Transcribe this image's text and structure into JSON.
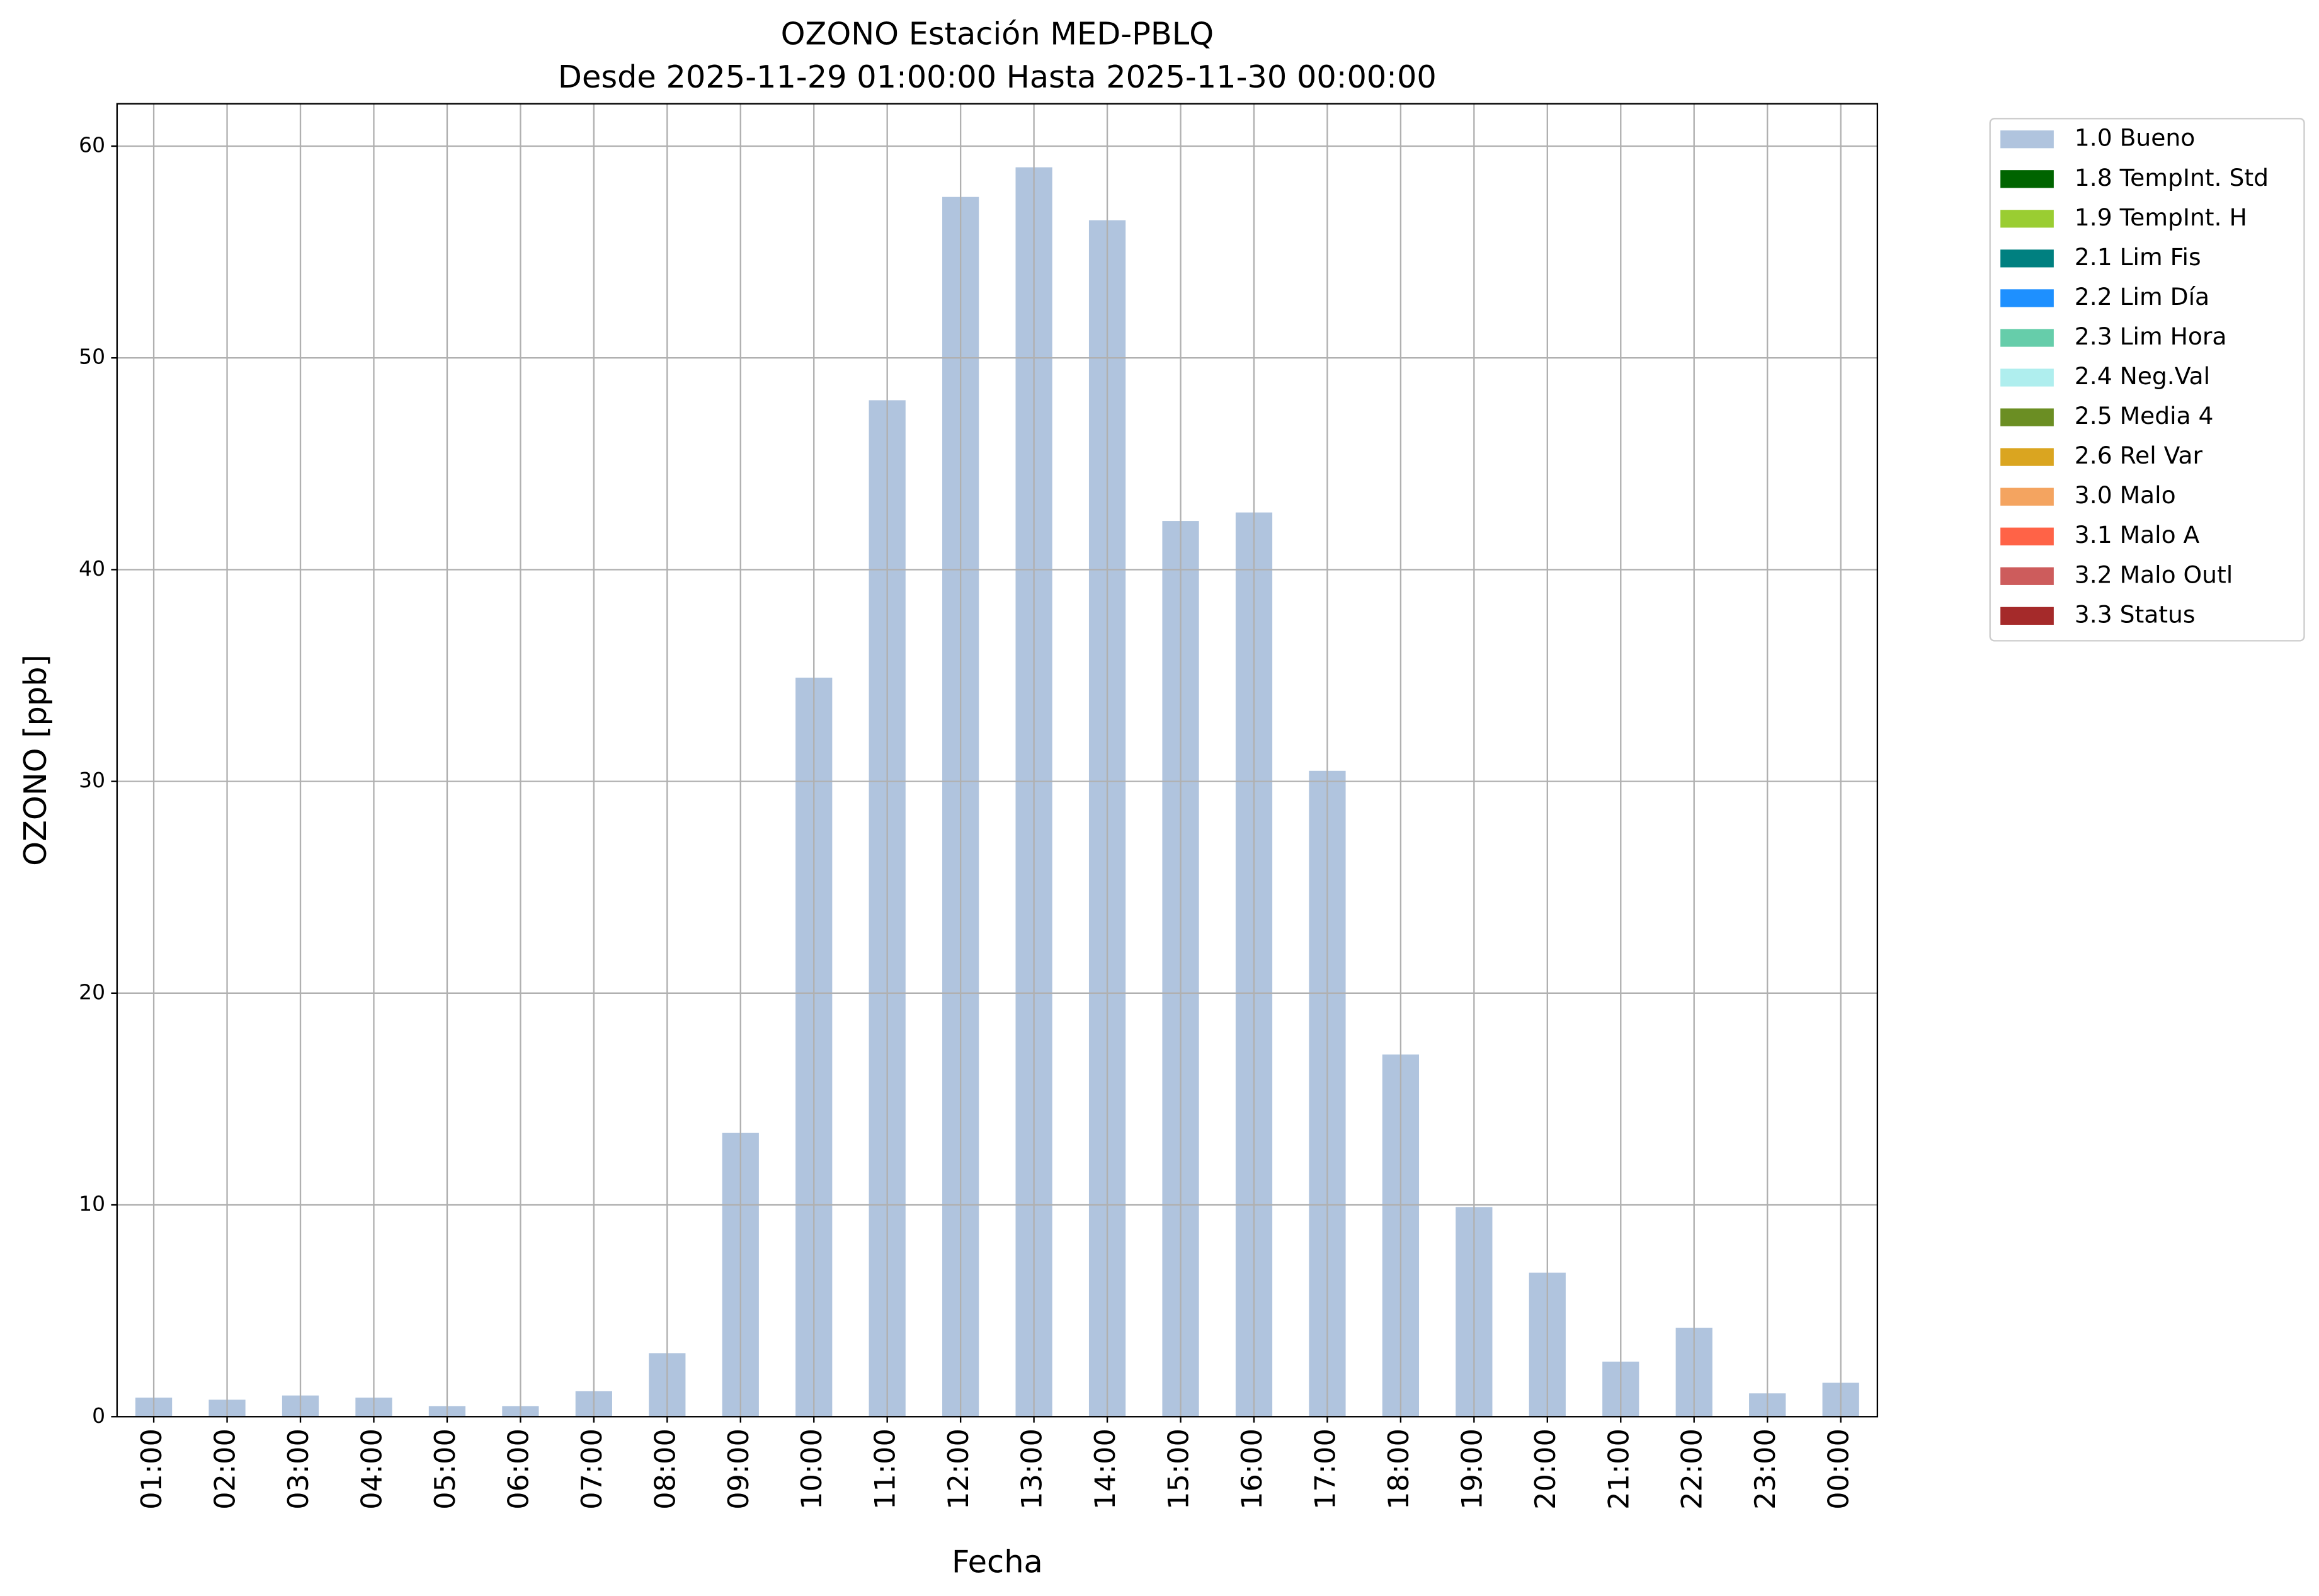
{
  "chart_data": {
    "type": "bar",
    "title": "OZONO Estación MED-PBLQ",
    "subtitle": "Desde 2025-11-29 01:00:00 Hasta 2025-11-30 00:00:00",
    "x_label": "Fecha",
    "y_label": "OZONO [ppb]",
    "categories": [
      "01:00",
      "02:00",
      "03:00",
      "04:00",
      "05:00",
      "06:00",
      "07:00",
      "08:00",
      "09:00",
      "10:00",
      "11:00",
      "12:00",
      "13:00",
      "14:00",
      "15:00",
      "16:00",
      "17:00",
      "18:00",
      "19:00",
      "20:00",
      "21:00",
      "22:00",
      "23:00",
      "00:00"
    ],
    "series": [
      {
        "name": "1.0 Bueno",
        "color": "#b0c4de",
        "values": [
          0.9,
          0.8,
          1.0,
          0.9,
          0.5,
          0.5,
          1.2,
          3.0,
          13.4,
          34.9,
          48.0,
          57.6,
          59.0,
          56.5,
          42.3,
          42.7,
          30.5,
          17.1,
          9.9,
          6.8,
          2.6,
          4.2,
          1.1,
          1.6
        ]
      },
      {
        "name": "1.8 TempInt. Std",
        "color": "#006400"
      },
      {
        "name": "1.9 TempInt. H",
        "color": "#9acd32"
      },
      {
        "name": "2.1 Lim Fis",
        "color": "#008080"
      },
      {
        "name": "2.2 Lim Día",
        "color": "#1e90ff"
      },
      {
        "name": "2.3 Lim Hora",
        "color": "#66cdaa"
      },
      {
        "name": "2.4 Neg.Val",
        "color": "#afeeee"
      },
      {
        "name": "2.5 Media 4",
        "color": "#6b8e23"
      },
      {
        "name": "2.6 Rel Var",
        "color": "#daa520"
      },
      {
        "name": "3.0 Malo",
        "color": "#f4a460"
      },
      {
        "name": "3.1 Malo A",
        "color": "#ff6347"
      },
      {
        "name": "3.2 Malo Outl",
        "color": "#cd5c5c"
      },
      {
        "name": "3.3 Status",
        "color": "#a52a2a"
      }
    ],
    "ylim": [
      0,
      62
    ],
    "yticks": [
      0,
      10,
      20,
      30,
      40,
      50,
      60
    ],
    "grid": true,
    "legend": "outside-upper-right"
  }
}
